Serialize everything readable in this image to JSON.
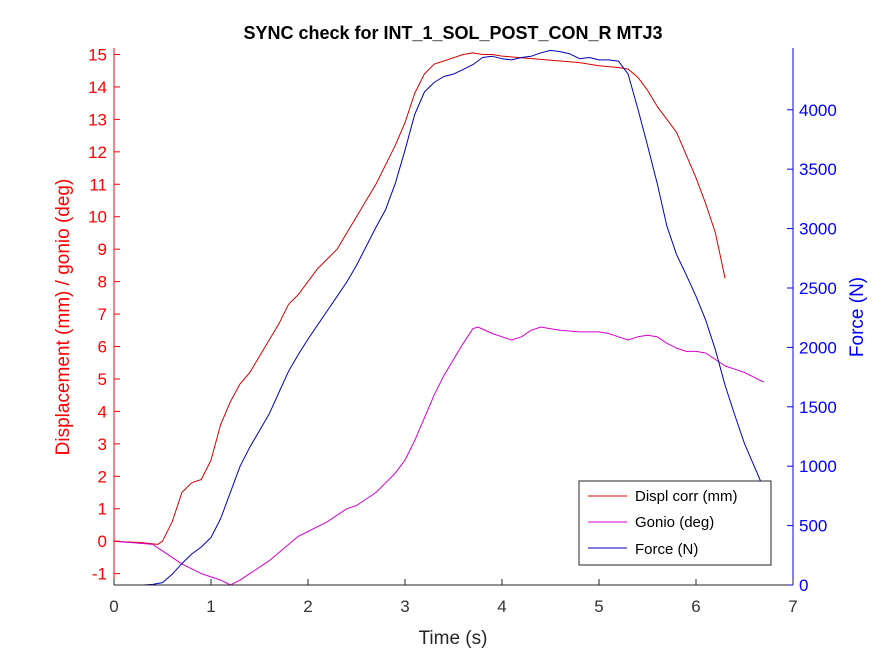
{
  "chart_data": {
    "type": "line",
    "title": "SYNC check for INT_1_SOL_POST_CON_R MTJ3",
    "xlabel": "Time (s)",
    "ylabel_left": "Displacement (mm) / gonio (deg)",
    "ylabel_right": "Force (N)",
    "xlim": [
      0,
      7
    ],
    "ylim_left": [
      -1.35,
      15.2
    ],
    "ylim_right": [
      0,
      4520
    ],
    "x_ticks": [
      "0",
      "1",
      "2",
      "3",
      "4",
      "5",
      "6",
      "7"
    ],
    "y_left_ticks": [
      "-1",
      "0",
      "1",
      "2",
      "3",
      "4",
      "5",
      "6",
      "7",
      "8",
      "9",
      "10",
      "11",
      "12",
      "13",
      "14",
      "15"
    ],
    "y_right_ticks": [
      "0",
      "500",
      "1000",
      "1500",
      "2000",
      "2500",
      "3000",
      "3500",
      "4000"
    ],
    "grid": false,
    "legend_position": "bottom-right",
    "colors": {
      "displ": "#d40000",
      "gonio": "#d400d4",
      "force": "#0000b8",
      "left_axis": "#ff0000",
      "right_axis": "#0000ff"
    },
    "series": [
      {
        "name": "Displ corr (mm)",
        "axis": "left",
        "x": [
          0,
          0.3,
          0.45,
          0.5,
          0.6,
          0.7,
          0.8,
          0.9,
          1.0,
          1.1,
          1.2,
          1.3,
          1.4,
          1.5,
          1.6,
          1.7,
          1.8,
          1.9,
          2.0,
          2.1,
          2.2,
          2.3,
          2.4,
          2.5,
          2.6,
          2.7,
          2.8,
          2.9,
          3.0,
          3.1,
          3.2,
          3.3,
          3.4,
          3.5,
          3.6,
          3.7,
          3.8,
          3.9,
          4.0,
          4.2,
          4.4,
          4.6,
          4.8,
          5.0,
          5.2,
          5.3,
          5.4,
          5.5,
          5.6,
          5.7,
          5.8,
          5.9,
          6.0,
          6.1,
          6.2,
          6.3
        ],
        "values": [
          0.0,
          -0.05,
          -0.1,
          0.0,
          0.6,
          1.5,
          1.8,
          1.9,
          2.5,
          3.6,
          4.3,
          4.85,
          5.2,
          5.7,
          6.2,
          6.7,
          7.3,
          7.6,
          8.0,
          8.4,
          8.7,
          9.0,
          9.5,
          10.0,
          10.5,
          11.0,
          11.6,
          12.2,
          12.9,
          13.8,
          14.4,
          14.7,
          14.8,
          14.9,
          15.0,
          15.05,
          15.0,
          15.0,
          14.95,
          14.9,
          14.85,
          14.8,
          14.75,
          14.65,
          14.6,
          14.55,
          14.3,
          13.9,
          13.4,
          13.0,
          12.6,
          11.9,
          11.2,
          10.4,
          9.5,
          8.1
        ]
      },
      {
        "name": "Gonio (deg)",
        "axis": "left",
        "x": [
          0,
          0.2,
          0.4,
          0.5,
          0.6,
          0.7,
          0.8,
          0.9,
          1.0,
          1.1,
          1.2,
          1.3,
          1.4,
          1.5,
          1.6,
          1.7,
          1.8,
          1.9,
          2.0,
          2.1,
          2.2,
          2.3,
          2.4,
          2.5,
          2.6,
          2.7,
          2.8,
          2.9,
          3.0,
          3.1,
          3.2,
          3.3,
          3.4,
          3.5,
          3.6,
          3.7,
          3.75,
          3.9,
          4.0,
          4.1,
          4.2,
          4.3,
          4.4,
          4.5,
          4.6,
          4.8,
          5.0,
          5.1,
          5.2,
          5.3,
          5.4,
          5.5,
          5.6,
          5.7,
          5.8,
          5.9,
          6.0,
          6.1,
          6.2,
          6.3,
          6.4,
          6.5,
          6.6,
          6.7
        ],
        "values": [
          0.0,
          -0.05,
          -0.1,
          -0.3,
          -0.5,
          -0.7,
          -0.85,
          -1.0,
          -1.1,
          -1.2,
          -1.35,
          -1.2,
          -1.0,
          -0.8,
          -0.6,
          -0.35,
          -0.1,
          0.15,
          0.3,
          0.45,
          0.6,
          0.8,
          1.0,
          1.1,
          1.3,
          1.5,
          1.8,
          2.1,
          2.5,
          3.1,
          3.8,
          4.5,
          5.1,
          5.6,
          6.1,
          6.55,
          6.6,
          6.4,
          6.3,
          6.2,
          6.3,
          6.5,
          6.6,
          6.55,
          6.5,
          6.45,
          6.45,
          6.4,
          6.3,
          6.2,
          6.3,
          6.35,
          6.3,
          6.1,
          5.95,
          5.85,
          5.85,
          5.8,
          5.6,
          5.4,
          5.3,
          5.2,
          5.05,
          4.9
        ]
      },
      {
        "name": "Force (N)",
        "axis": "right",
        "x": [
          0,
          0.3,
          0.4,
          0.5,
          0.6,
          0.7,
          0.8,
          0.9,
          1.0,
          1.1,
          1.2,
          1.3,
          1.4,
          1.5,
          1.6,
          1.7,
          1.8,
          1.9,
          2.0,
          2.1,
          2.2,
          2.3,
          2.4,
          2.5,
          2.6,
          2.7,
          2.8,
          2.9,
          3.0,
          3.1,
          3.2,
          3.3,
          3.4,
          3.5,
          3.6,
          3.7,
          3.8,
          3.9,
          4.0,
          4.1,
          4.2,
          4.3,
          4.4,
          4.5,
          4.6,
          4.7,
          4.8,
          4.9,
          5.0,
          5.1,
          5.2,
          5.3,
          5.4,
          5.5,
          5.6,
          5.7,
          5.8,
          5.9,
          6.0,
          6.1,
          6.2,
          6.3,
          6.4,
          6.5,
          6.6,
          6.7
        ],
        "values": [
          0,
          0,
          5,
          20,
          90,
          180,
          260,
          320,
          400,
          560,
          780,
          1000,
          1160,
          1300,
          1440,
          1620,
          1800,
          1940,
          2070,
          2190,
          2310,
          2430,
          2550,
          2690,
          2850,
          3010,
          3160,
          3380,
          3660,
          3960,
          4150,
          4230,
          4280,
          4300,
          4340,
          4380,
          4440,
          4450,
          4430,
          4420,
          4440,
          4450,
          4480,
          4500,
          4490,
          4470,
          4430,
          4440,
          4420,
          4420,
          4410,
          4300,
          4010,
          3700,
          3380,
          3020,
          2780,
          2610,
          2430,
          2230,
          1980,
          1680,
          1430,
          1190,
          1000,
          810
        ]
      }
    ]
  }
}
